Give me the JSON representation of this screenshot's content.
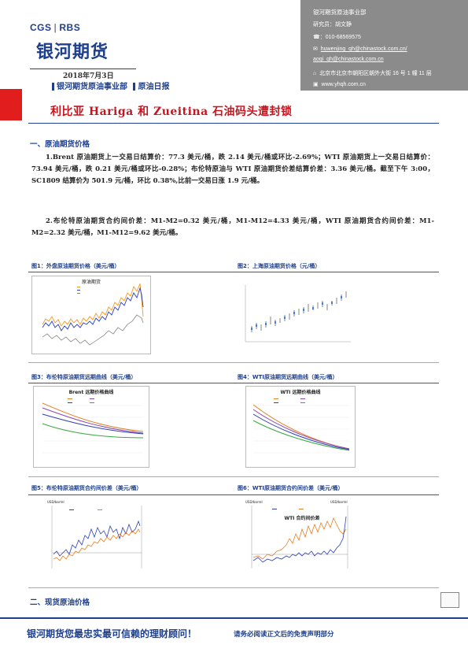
{
  "header": {
    "logo_cgs": "CGS",
    "logo_rbs": "RBS",
    "logo_main": "银河期货",
    "date": "2018年7月3日",
    "dept": "银河期货原油事业部",
    "report": "原油日报"
  },
  "contact": {
    "dept": "银河期货原油事业部",
    "researcher": "研究员：胡文静",
    "phone": "☎：010-68569575",
    "email1": "huwenjing_qh@chinastock.com.cn/",
    "email2": "aoqi_qh@chinastock.com.cn",
    "address": "北京市北京市朝阳区朝外大街 16 号 1 幢 11 层",
    "website": "www.yhqh.com.cn"
  },
  "title": "利比亚 Hariga 和 Zueitina 石油码头遭封锁",
  "section1": "一、原油期货价格",
  "para1": "1.Brent 原油期货上一交易日结算价：77.3 美元/桶，跌 2.14 美元/桶或环比-2.69%；WTI 原油期货上一交易日结算价：73.94 美元/桶，跌 0.21 美元/桶或环比-0.28%；布伦特原油与 WTI 原油期货价差结算价差：3.36 美元/桶。截至下午 3:00，SC1809 结算价为 501.9 元/桶，环比 0.38%,比前一交易日涨 1.9 元/桶。",
  "para2": "2.布伦特原油期货合约间价差：M1-M2=0.32 美元/桶，M1-M12=4.33 美元/桶，WTI 原油期货合约间价差：M1-M2=2.32 美元/桶，M1-M12=9.62 美元/桶。",
  "figures": {
    "f1": "图1：外盘原油期货价格（美元/桶）",
    "f2": "图2：上海原油期货价格（元/桶）",
    "f3": "图3：布伦特原油期货远期曲线（美元/桶）",
    "f4": "图4：WTI原油期货远期曲线（美元/桶）",
    "f5": "图5：布伦特原油期货合约间价差（美元/桶）",
    "f6": "图6：WTI原油期货合约间价差（美元/桶）"
  },
  "chart_text": {
    "c1_title": "原油期货",
    "c3_title": "Brent 远期价格曲线",
    "c4_title": "WTI 远期价格曲线",
    "c5_unit": "USD/barrel",
    "c6_unit_l": "USD/barrel",
    "c6_unit_r": "USD/barrel",
    "c6_title": "WTI 合约间价差"
  },
  "section2": "二、现货原油价格",
  "footer": {
    "slogan": "银河期货您最忠实最可信赖的理财顾问！",
    "disclaimer": "请务必阅读正文后的免责声明部分"
  },
  "colors": {
    "brand_blue": "#1e3f8c",
    "title_red": "#c8141e",
    "band_red": "#e11d1d"
  }
}
